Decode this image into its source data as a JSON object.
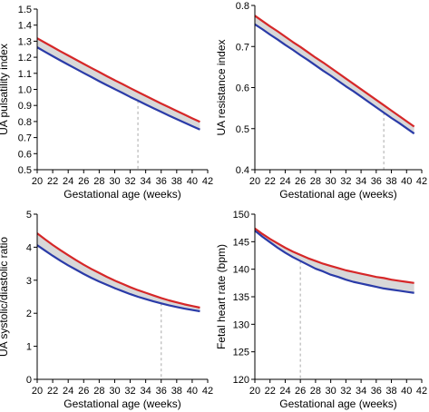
{
  "chart_data": [
    {
      "type": "line",
      "title": "",
      "xlabel": "Gestational age (weeks)",
      "ylabel": "UA pulsatility index",
      "xlim": [
        20,
        42
      ],
      "ylim": [
        0.5,
        1.5
      ],
      "xticks": [
        "20",
        "22",
        "24",
        "26",
        "28",
        "30",
        "32",
        "34",
        "36",
        "38",
        "40",
        "42"
      ],
      "yticks": [
        "0.5",
        "0.6",
        "0.7",
        "0.8",
        "0.9",
        "1.0",
        "1.1",
        "1.2",
        "1.3",
        "1.4",
        "1.5"
      ],
      "x": [
        20,
        21,
        22,
        23,
        24,
        25,
        26,
        27,
        28,
        29,
        30,
        31,
        32,
        33,
        34,
        35,
        36,
        37,
        38,
        39,
        40,
        41
      ],
      "series": [
        {
          "values": [
            1.318,
            1.291,
            1.264,
            1.237,
            1.211,
            1.185,
            1.159,
            1.133,
            1.108,
            1.082,
            1.057,
            1.033,
            1.008,
            0.984,
            0.96,
            0.936,
            0.912,
            0.889,
            0.866,
            0.843,
            0.82,
            0.798
          ],
          "color": "#d62728"
        },
        {
          "values": [
            1.262,
            1.234,
            1.207,
            1.18,
            1.154,
            1.128,
            1.102,
            1.077,
            1.051,
            1.026,
            1.002,
            0.978,
            0.953,
            0.93,
            0.906,
            0.883,
            0.86,
            0.837,
            0.815,
            0.793,
            0.771,
            0.75
          ],
          "color": "#2a3ba8"
        }
      ],
      "marker_x": 33,
      "grid": false,
      "legend": "none"
    },
    {
      "type": "line",
      "title": "",
      "xlabel": "Gestational age (weeks)",
      "ylabel": "UA resistance index",
      "xlim": [
        20,
        42
      ],
      "ylim": [
        0.4,
        0.8
      ],
      "xticks": [
        "20",
        "22",
        "24",
        "26",
        "28",
        "30",
        "32",
        "34",
        "36",
        "38",
        "40",
        "42"
      ],
      "yticks": [
        "0.4",
        "0.5",
        "0.6",
        "0.7",
        "0.8"
      ],
      "x": [
        20,
        21,
        22,
        23,
        24,
        25,
        26,
        27,
        28,
        29,
        30,
        31,
        32,
        33,
        34,
        35,
        36,
        37,
        38,
        39,
        40,
        41
      ],
      "series": [
        {
          "values": [
            0.775,
            0.762,
            0.749,
            0.737,
            0.724,
            0.711,
            0.699,
            0.686,
            0.673,
            0.661,
            0.648,
            0.635,
            0.622,
            0.609,
            0.596,
            0.583,
            0.57,
            0.557,
            0.544,
            0.531,
            0.518,
            0.505
          ],
          "color": "#d62728"
        },
        {
          "values": [
            0.754,
            0.742,
            0.729,
            0.717,
            0.704,
            0.692,
            0.679,
            0.667,
            0.654,
            0.641,
            0.629,
            0.616,
            0.603,
            0.591,
            0.578,
            0.565,
            0.552,
            0.539,
            0.526,
            0.514,
            0.501,
            0.488
          ],
          "color": "#2a3ba8"
        }
      ],
      "marker_x": 37,
      "grid": false,
      "legend": "none"
    },
    {
      "type": "line",
      "title": "",
      "xlabel": "Gestational age (weeks)",
      "ylabel": "UA systolic/diastolic ratio",
      "xlim": [
        20,
        42
      ],
      "ylim": [
        0,
        5
      ],
      "xticks": [
        "20",
        "22",
        "24",
        "26",
        "28",
        "30",
        "32",
        "34",
        "36",
        "38",
        "40",
        "42"
      ],
      "yticks": [
        "0",
        "1",
        "2",
        "3",
        "4",
        "5"
      ],
      "x": [
        20,
        21,
        22,
        23,
        24,
        25,
        26,
        27,
        28,
        29,
        30,
        31,
        32,
        33,
        34,
        35,
        36,
        37,
        38,
        39,
        40,
        41
      ],
      "series": [
        {
          "values": [
            4.42,
            4.24,
            4.07,
            3.91,
            3.76,
            3.61,
            3.47,
            3.34,
            3.22,
            3.1,
            2.99,
            2.89,
            2.79,
            2.7,
            2.62,
            2.54,
            2.46,
            2.39,
            2.33,
            2.27,
            2.22,
            2.17
          ],
          "color": "#d62728"
        },
        {
          "values": [
            4.06,
            3.9,
            3.74,
            3.59,
            3.45,
            3.32,
            3.19,
            3.07,
            2.96,
            2.86,
            2.76,
            2.67,
            2.58,
            2.5,
            2.43,
            2.36,
            2.3,
            2.24,
            2.19,
            2.14,
            2.1,
            2.06
          ],
          "color": "#2a3ba8"
        }
      ],
      "marker_x": 36,
      "grid": false,
      "legend": "none"
    },
    {
      "type": "line",
      "title": "",
      "xlabel": "Gestational age (weeks)",
      "ylabel": "Fetal heart rate (bpm)",
      "xlim": [
        20,
        42
      ],
      "ylim": [
        120,
        150
      ],
      "xticks": [
        "20",
        "22",
        "24",
        "26",
        "28",
        "30",
        "32",
        "34",
        "36",
        "38",
        "40",
        "42"
      ],
      "yticks": [
        "120",
        "125",
        "130",
        "135",
        "140",
        "145",
        "150"
      ],
      "x": [
        20,
        21,
        22,
        23,
        24,
        25,
        26,
        27,
        28,
        29,
        30,
        31,
        32,
        33,
        34,
        35,
        36,
        37,
        38,
        39,
        40,
        41
      ],
      "series": [
        {
          "values": [
            147.4,
            146.4,
            145.5,
            144.7,
            143.9,
            143.2,
            142.6,
            142.0,
            141.5,
            141.0,
            140.6,
            140.2,
            139.8,
            139.5,
            139.2,
            138.9,
            138.6,
            138.4,
            138.1,
            137.9,
            137.7,
            137.5
          ],
          "color": "#d62728"
        },
        {
          "values": [
            147.0,
            145.9,
            144.9,
            143.9,
            143.0,
            142.2,
            141.5,
            140.8,
            140.1,
            139.6,
            139.0,
            138.6,
            138.1,
            137.7,
            137.4,
            137.1,
            136.8,
            136.5,
            136.3,
            136.1,
            135.9,
            135.7
          ],
          "color": "#2a3ba8"
        }
      ],
      "marker_x": 26,
      "grid": false,
      "legend": "none"
    }
  ]
}
